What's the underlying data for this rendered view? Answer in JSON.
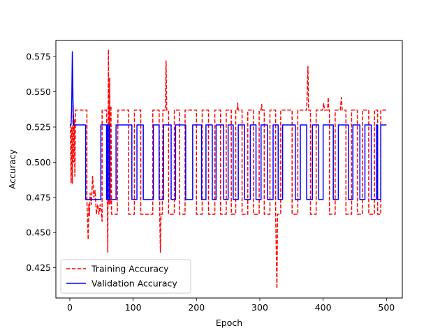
{
  "chart_data": {
    "type": "line",
    "xlabel": "Epoch",
    "ylabel": "Accuracy",
    "xlim": [
      -22,
      525
    ],
    "ylim": [
      0.4035,
      0.5865
    ],
    "xticks": [
      0,
      100,
      200,
      300,
      400,
      500
    ],
    "yticks": [
      0.425,
      0.45,
      0.475,
      0.5,
      0.525,
      0.55,
      0.575
    ],
    "ytick_labels": [
      "0.425",
      "0.450",
      "0.475",
      "0.500",
      "0.525",
      "0.550",
      "0.575"
    ],
    "grid": false,
    "legend": "lower-left",
    "series": [
      {
        "name": "Training Accuracy",
        "color": "#ff0000",
        "style": "dashed",
        "points": [
          [
            1,
            0.527
          ],
          [
            2,
            0.485
          ],
          [
            3,
            0.525
          ],
          [
            4,
            0.485
          ],
          [
            5,
            0.54
          ],
          [
            6,
            0.5
          ],
          [
            7,
            0.53
          ],
          [
            8,
            0.49
          ],
          [
            9,
            0.537
          ],
          [
            10,
            0.537
          ],
          [
            27,
            0.537
          ],
          [
            27,
            0.473
          ],
          [
            28,
            0.46
          ],
          [
            29,
            0.445
          ],
          [
            30,
            0.47
          ],
          [
            31,
            0.462
          ],
          [
            32,
            0.478
          ],
          [
            34,
            0.47
          ],
          [
            36,
            0.49
          ],
          [
            38,
            0.475
          ],
          [
            40,
            0.48
          ],
          [
            42,
            0.463
          ],
          [
            44,
            0.47
          ],
          [
            46,
            0.463
          ],
          [
            48,
            0.47
          ],
          [
            50,
            0.463
          ],
          [
            51,
            0.458
          ],
          [
            51,
            0.537
          ],
          [
            58,
            0.537
          ],
          [
            59,
            0.48
          ],
          [
            60,
            0.436
          ],
          [
            61,
            0.58
          ],
          [
            62,
            0.47
          ],
          [
            63,
            0.56
          ],
          [
            64,
            0.47
          ],
          [
            65,
            0.54
          ],
          [
            66,
            0.463
          ],
          [
            75,
            0.463
          ],
          [
            76,
            0.537
          ],
          [
            93,
            0.537
          ],
          [
            93,
            0.463
          ],
          [
            102,
            0.463
          ],
          [
            102,
            0.537
          ],
          [
            112,
            0.537
          ],
          [
            112,
            0.463
          ],
          [
            131,
            0.463
          ],
          [
            131,
            0.537
          ],
          [
            141,
            0.537
          ],
          [
            142,
            0.463
          ],
          [
            143,
            0.436
          ],
          [
            144,
            0.463
          ],
          [
            146,
            0.463
          ],
          [
            147,
            0.537
          ],
          [
            151,
            0.537
          ],
          [
            152,
            0.572
          ],
          [
            153,
            0.537
          ],
          [
            156,
            0.537
          ],
          [
            156,
            0.463
          ],
          [
            165,
            0.463
          ],
          [
            165,
            0.537
          ],
          [
            173,
            0.537
          ],
          [
            173,
            0.463
          ],
          [
            182,
            0.463
          ],
          [
            182,
            0.537
          ],
          [
            200,
            0.537
          ],
          [
            200,
            0.463
          ],
          [
            209,
            0.463
          ],
          [
            209,
            0.537
          ],
          [
            219,
            0.537
          ],
          [
            219,
            0.463
          ],
          [
            229,
            0.463
          ],
          [
            229,
            0.537
          ],
          [
            238,
            0.537
          ],
          [
            238,
            0.463
          ],
          [
            247,
            0.463
          ],
          [
            247,
            0.537
          ],
          [
            255,
            0.537
          ],
          [
            255,
            0.463
          ],
          [
            262,
            0.463
          ],
          [
            262,
            0.537
          ],
          [
            264,
            0.537
          ],
          [
            265,
            0.542
          ],
          [
            266,
            0.537
          ],
          [
            272,
            0.537
          ],
          [
            272,
            0.463
          ],
          [
            281,
            0.463
          ],
          [
            281,
            0.537
          ],
          [
            290,
            0.537
          ],
          [
            290,
            0.463
          ],
          [
            299,
            0.463
          ],
          [
            299,
            0.537
          ],
          [
            302,
            0.537
          ],
          [
            303,
            0.541
          ],
          [
            304,
            0.537
          ],
          [
            307,
            0.537
          ],
          [
            307,
            0.463
          ],
          [
            316,
            0.463
          ],
          [
            316,
            0.537
          ],
          [
            325,
            0.537
          ],
          [
            325,
            0.463
          ],
          [
            327,
            0.41
          ],
          [
            328,
            0.463
          ],
          [
            333,
            0.463
          ],
          [
            333,
            0.537
          ],
          [
            351,
            0.537
          ],
          [
            351,
            0.463
          ],
          [
            360,
            0.463
          ],
          [
            360,
            0.537
          ],
          [
            370,
            0.537
          ],
          [
            374,
            0.537
          ],
          [
            376,
            0.568
          ],
          [
            377,
            0.537
          ],
          [
            380,
            0.537
          ],
          [
            380,
            0.463
          ],
          [
            389,
            0.463
          ],
          [
            389,
            0.537
          ],
          [
            399,
            0.537
          ],
          [
            401,
            0.542
          ],
          [
            402,
            0.537
          ],
          [
            407,
            0.537
          ],
          [
            408,
            0.546
          ],
          [
            409,
            0.537
          ],
          [
            410,
            0.537
          ],
          [
            410,
            0.463
          ],
          [
            419,
            0.463
          ],
          [
            419,
            0.537
          ],
          [
            427,
            0.537
          ],
          [
            429,
            0.546
          ],
          [
            430,
            0.537
          ],
          [
            436,
            0.537
          ],
          [
            436,
            0.463
          ],
          [
            445,
            0.463
          ],
          [
            445,
            0.537
          ],
          [
            454,
            0.537
          ],
          [
            454,
            0.463
          ],
          [
            462,
            0.463
          ],
          [
            462,
            0.537
          ],
          [
            472,
            0.537
          ],
          [
            472,
            0.463
          ],
          [
            481,
            0.463
          ],
          [
            481,
            0.537
          ],
          [
            486,
            0.537
          ],
          [
            486,
            0.463
          ],
          [
            491,
            0.463
          ],
          [
            491,
            0.537
          ],
          [
            500,
            0.537
          ]
        ]
      },
      {
        "name": "Validation Accuracy",
        "color": "#0000ff",
        "style": "solid",
        "points": [
          [
            0,
            0.5265
          ],
          [
            2,
            0.5265
          ],
          [
            3,
            0.54
          ],
          [
            4,
            0.5785
          ],
          [
            5,
            0.545
          ],
          [
            6,
            0.5265
          ],
          [
            25,
            0.5265
          ],
          [
            25,
            0.4735
          ],
          [
            49,
            0.4735
          ],
          [
            49,
            0.5265
          ],
          [
            58,
            0.5265
          ],
          [
            58,
            0.4735
          ],
          [
            59,
            0.4735
          ],
          [
            59,
            0.5265
          ],
          [
            60,
            0.5265
          ],
          [
            60,
            0.4735
          ],
          [
            62,
            0.4735
          ],
          [
            62,
            0.5265
          ],
          [
            63,
            0.5265
          ],
          [
            63,
            0.4735
          ],
          [
            73,
            0.4735
          ],
          [
            73,
            0.5265
          ],
          [
            98,
            0.5265
          ],
          [
            98,
            0.4735
          ],
          [
            106,
            0.4735
          ],
          [
            106,
            0.5265
          ],
          [
            116,
            0.5265
          ],
          [
            116,
            0.4735
          ],
          [
            132,
            0.4735
          ],
          [
            132,
            0.5265
          ],
          [
            141,
            0.5265
          ],
          [
            141,
            0.4735
          ],
          [
            148,
            0.4735
          ],
          [
            148,
            0.5265
          ],
          [
            160,
            0.5265
          ],
          [
            160,
            0.4735
          ],
          [
            167,
            0.4735
          ],
          [
            167,
            0.5265
          ],
          [
            183,
            0.5265
          ],
          [
            183,
            0.4735
          ],
          [
            194,
            0.4735
          ],
          [
            194,
            0.5265
          ],
          [
            208,
            0.5265
          ],
          [
            208,
            0.4735
          ],
          [
            215,
            0.4735
          ],
          [
            215,
            0.5265
          ],
          [
            225,
            0.5265
          ],
          [
            225,
            0.4735
          ],
          [
            231,
            0.4735
          ],
          [
            231,
            0.5265
          ],
          [
            243,
            0.5265
          ],
          [
            243,
            0.4735
          ],
          [
            250,
            0.4735
          ],
          [
            250,
            0.5265
          ],
          [
            258,
            0.5265
          ],
          [
            258,
            0.4735
          ],
          [
            266,
            0.4735
          ],
          [
            266,
            0.5265
          ],
          [
            276,
            0.5265
          ],
          [
            276,
            0.4735
          ],
          [
            285,
            0.4735
          ],
          [
            285,
            0.5265
          ],
          [
            294,
            0.5265
          ],
          [
            294,
            0.4735
          ],
          [
            302,
            0.4735
          ],
          [
            302,
            0.5265
          ],
          [
            312,
            0.5265
          ],
          [
            312,
            0.4735
          ],
          [
            321,
            0.4735
          ],
          [
            321,
            0.5265
          ],
          [
            329,
            0.5265
          ],
          [
            329,
            0.4735
          ],
          [
            336,
            0.4735
          ],
          [
            336,
            0.5265
          ],
          [
            356,
            0.5265
          ],
          [
            356,
            0.4735
          ],
          [
            364,
            0.4735
          ],
          [
            364,
            0.5265
          ],
          [
            374,
            0.5265
          ],
          [
            374,
            0.4735
          ],
          [
            383,
            0.4735
          ],
          [
            383,
            0.5265
          ],
          [
            393,
            0.5265
          ],
          [
            393,
            0.4735
          ],
          [
            400,
            0.4735
          ],
          [
            400,
            0.5265
          ],
          [
            416,
            0.5265
          ],
          [
            416,
            0.4735
          ],
          [
            424,
            0.4735
          ],
          [
            424,
            0.5265
          ],
          [
            440,
            0.5265
          ],
          [
            440,
            0.4735
          ],
          [
            447,
            0.4735
          ],
          [
            447,
            0.5265
          ],
          [
            458,
            0.5265
          ],
          [
            458,
            0.4735
          ],
          [
            466,
            0.4735
          ],
          [
            466,
            0.5265
          ],
          [
            476,
            0.5265
          ],
          [
            476,
            0.4735
          ],
          [
            484,
            0.4735
          ],
          [
            484,
            0.5265
          ],
          [
            486,
            0.5265
          ],
          [
            486,
            0.4735
          ],
          [
            491,
            0.4735
          ],
          [
            491,
            0.5265
          ],
          [
            500,
            0.5265
          ]
        ]
      }
    ]
  }
}
